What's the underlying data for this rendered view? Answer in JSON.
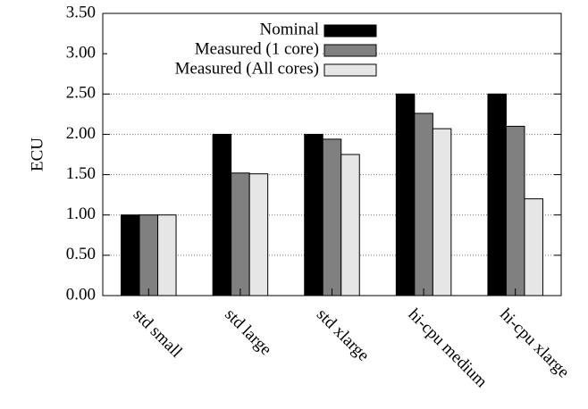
{
  "chart_data": {
    "type": "bar",
    "title": "",
    "xlabel": "",
    "ylabel": "ECU",
    "ylim": [
      0,
      3.5
    ],
    "yticks": [
      "0.00",
      "0.50",
      "1.00",
      "1.50",
      "2.00",
      "2.50",
      "3.00",
      "3.50"
    ],
    "categories": [
      "std small",
      "std large",
      "std xlarge",
      "hi-cpu medium",
      "hi-cpu xlarge"
    ],
    "series": [
      {
        "name": "Nominal",
        "values": [
          1.0,
          2.0,
          2.0,
          2.5,
          2.5
        ],
        "color": "#000000"
      },
      {
        "name": "Measured (1 core)",
        "values": [
          1.0,
          1.52,
          1.94,
          2.26,
          2.1
        ],
        "color": "#808080"
      },
      {
        "name": "Measured (All cores)",
        "values": [
          1.0,
          1.51,
          1.75,
          2.07,
          1.2
        ],
        "color": "#e6e6e6"
      }
    ],
    "grid": true,
    "legend_position": "top-right"
  }
}
